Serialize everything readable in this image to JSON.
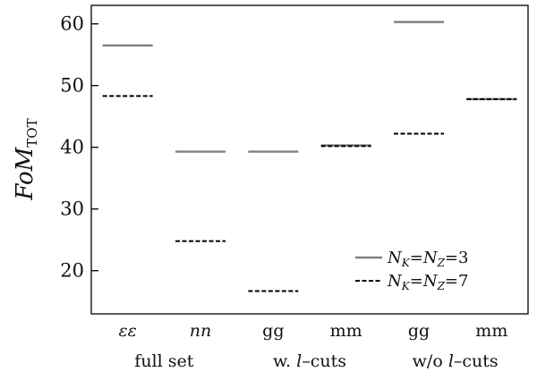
{
  "chart_data": {
    "type": "line",
    "ylabel": {
      "main": "FoM",
      "sub": "TOT"
    },
    "ylim": [
      13,
      63
    ],
    "yticks": [
      "20",
      "30",
      "40",
      "50",
      "60"
    ],
    "categories": [
      "εε",
      "nn",
      "gg",
      "mm",
      "gg",
      "mm"
    ],
    "category_italic": [
      true,
      true,
      false,
      false,
      false,
      false
    ],
    "groups": [
      {
        "label": "full set",
        "span": [
          0,
          1
        ]
      },
      {
        "label_parts": [
          "w. ",
          "l",
          "–cuts"
        ],
        "span": [
          2,
          3
        ]
      },
      {
        "label_parts": [
          "w/o ",
          "l",
          "–cuts"
        ],
        "span": [
          4,
          5
        ]
      }
    ],
    "series": [
      {
        "name": "N_K=N_Z=3",
        "name_parts": {
          "n1": "N",
          "s1": "K",
          "n2": "N",
          "s2": "Z",
          "val": "3"
        },
        "style": "solid",
        "color": "#808080",
        "values": [
          56.5,
          39.3,
          39.3,
          40.3,
          60.3,
          47.8
        ]
      },
      {
        "name": "N_K=N_Z=7",
        "name_parts": {
          "n1": "N",
          "s1": "K",
          "n2": "N",
          "s2": "Z",
          "val": "7"
        },
        "style": "dashed",
        "color": "#000000",
        "values": [
          48.3,
          24.8,
          16.7,
          40.2,
          42.2,
          47.8
        ]
      }
    ],
    "legend_position": "lower-right",
    "grid": false
  }
}
